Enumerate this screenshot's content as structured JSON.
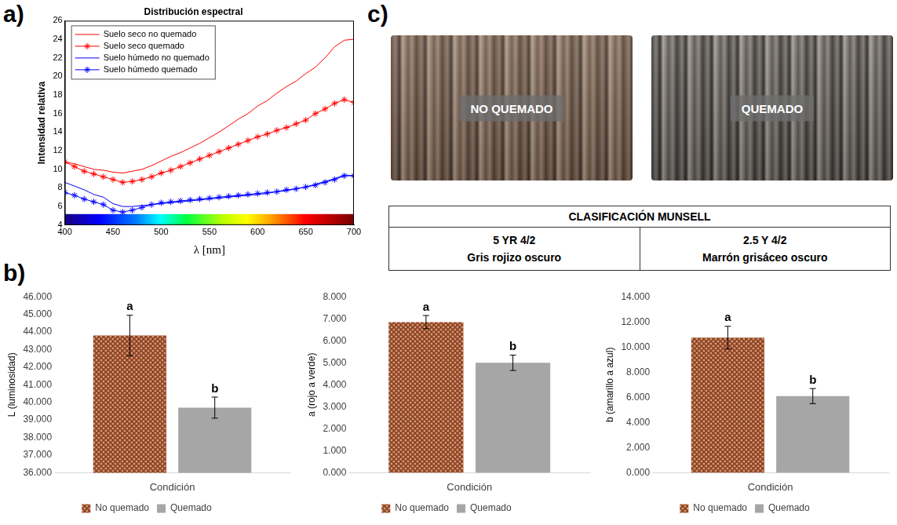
{
  "panel_labels": {
    "a": "a)",
    "b": "b)",
    "c": "c)"
  },
  "chart_data": [
    {
      "type": "line",
      "title": "Distribución espectral",
      "x_label": "λ [nm]",
      "y_label": "Intensidad relativa",
      "x": [
        400,
        410,
        420,
        430,
        440,
        450,
        460,
        470,
        480,
        490,
        500,
        510,
        520,
        530,
        540,
        550,
        560,
        570,
        580,
        590,
        600,
        610,
        620,
        630,
        640,
        650,
        660,
        670,
        680,
        690,
        700
      ],
      "series": [
        {
          "name": "Suelo seco no quemado",
          "color": "#ff0000",
          "marker": "none",
          "line_style": "solid",
          "values": [
            10.8,
            10.6,
            10.3,
            10.0,
            9.9,
            9.7,
            9.6,
            9.8,
            10.0,
            10.4,
            10.9,
            11.4,
            11.8,
            12.3,
            12.8,
            13.4,
            14.0,
            14.7,
            15.4,
            16.0,
            16.8,
            17.4,
            18.2,
            18.9,
            19.5,
            20.3,
            21.0,
            22.0,
            23.2,
            23.9,
            24.0
          ]
        },
        {
          "name": "Suelo seco quemado",
          "color": "#ff0000",
          "marker": "star",
          "line_style": "solid",
          "values": [
            10.8,
            10.3,
            9.8,
            9.5,
            9.2,
            8.9,
            8.6,
            8.7,
            8.9,
            9.2,
            9.6,
            9.9,
            10.3,
            10.7,
            11.1,
            11.5,
            11.9,
            12.3,
            12.7,
            13.1,
            13.5,
            13.8,
            14.2,
            14.5,
            14.9,
            15.3,
            16.0,
            16.5,
            17.1,
            17.5,
            17.2
          ]
        },
        {
          "name": "Suelo húmedo no quemado",
          "color": "#0000ff",
          "marker": "none",
          "line_style": "solid",
          "values": [
            8.6,
            8.2,
            7.8,
            7.3,
            7.0,
            6.3,
            6.0,
            6.0,
            6.1,
            6.2,
            6.3,
            6.4,
            6.5,
            6.6,
            6.7,
            6.8,
            6.9,
            7.0,
            7.1,
            7.2,
            7.3,
            7.4,
            7.6,
            7.7,
            7.9,
            8.1,
            8.4,
            8.7,
            9.0,
            9.4,
            9.3
          ]
        },
        {
          "name": "Suelo húmedo quemado",
          "color": "#0000ff",
          "marker": "star",
          "line_style": "solid",
          "values": [
            7.5,
            7.2,
            6.8,
            6.5,
            6.2,
            5.6,
            5.4,
            5.6,
            5.9,
            6.2,
            6.4,
            6.5,
            6.6,
            6.7,
            6.8,
            6.9,
            7.0,
            7.1,
            7.2,
            7.3,
            7.4,
            7.5,
            7.6,
            7.8,
            7.9,
            8.1,
            8.3,
            8.6,
            8.9,
            9.3,
            9.3
          ]
        }
      ],
      "xlim": [
        400,
        700
      ],
      "xticks": [
        400,
        450,
        500,
        550,
        600,
        650,
        700
      ],
      "ylim": [
        4,
        26
      ],
      "yticks": [
        4,
        6,
        8,
        10,
        12,
        14,
        16,
        18,
        20,
        22,
        24,
        26
      ],
      "grid": false,
      "legend": "upper left"
    },
    {
      "type": "bar",
      "y_label": "L (luminosidad)",
      "categories": [
        "Condición"
      ],
      "series": [
        {
          "name": "No quemado",
          "color": "#a0522d",
          "values": [
            43.8
          ],
          "errors": [
            1.15
          ],
          "letters": [
            "a"
          ]
        },
        {
          "name": "Quemado",
          "color": "#a6a6a6",
          "values": [
            39.7
          ],
          "errors": [
            0.6
          ],
          "letters": [
            "b"
          ]
        }
      ],
      "ylim": [
        36,
        46
      ],
      "yticks": [
        {
          "value": 36,
          "label": "36.000"
        },
        {
          "value": 37,
          "label": "37.000"
        },
        {
          "value": 38,
          "label": "38.000"
        },
        {
          "value": 39,
          "label": "39.000"
        },
        {
          "value": 40,
          "label": "40.000"
        },
        {
          "value": 41,
          "label": "41.000"
        },
        {
          "value": 42,
          "label": "42.000"
        },
        {
          "value": 43,
          "label": "43.000"
        },
        {
          "value": 44,
          "label": "44.000"
        },
        {
          "value": 45,
          "label": "45.000"
        },
        {
          "value": 46,
          "label": "46.000"
        }
      ],
      "grid": false,
      "legend": "bottom"
    },
    {
      "type": "bar",
      "y_label": "a (rojo a verde)",
      "categories": [
        "Condición"
      ],
      "series": [
        {
          "name": "No quemado",
          "color": "#a0522d",
          "values": [
            6.85
          ],
          "errors": [
            0.3
          ],
          "letters": [
            "a"
          ]
        },
        {
          "name": "Quemado",
          "color": "#a6a6a6",
          "values": [
            5.0
          ],
          "errors": [
            0.35
          ],
          "letters": [
            "b"
          ]
        }
      ],
      "ylim": [
        0,
        8
      ],
      "yticks": [
        {
          "value": 0,
          "label": "0.000"
        },
        {
          "value": 1,
          "label": "1.000"
        },
        {
          "value": 2,
          "label": "2.000"
        },
        {
          "value": 3,
          "label": "3.000"
        },
        {
          "value": 4,
          "label": "4.000"
        },
        {
          "value": 5,
          "label": "5.000"
        },
        {
          "value": 6,
          "label": "6.000"
        },
        {
          "value": 7,
          "label": "7.000"
        },
        {
          "value": 8,
          "label": "8.000"
        }
      ],
      "grid": false,
      "legend": "bottom"
    },
    {
      "type": "bar",
      "y_label": "b (amarillo a azul)",
      "categories": [
        "Condición"
      ],
      "series": [
        {
          "name": "No quemado",
          "color": "#a0522d",
          "values": [
            10.75
          ],
          "errors": [
            0.9
          ],
          "letters": [
            "a"
          ]
        },
        {
          "name": "Quemado",
          "color": "#a6a6a6",
          "values": [
            6.1
          ],
          "errors": [
            0.6
          ],
          "letters": [
            "b"
          ]
        }
      ],
      "ylim": [
        0,
        14
      ],
      "yticks": [
        {
          "value": 0,
          "label": "0.000"
        },
        {
          "value": 2,
          "label": "2.000"
        },
        {
          "value": 4,
          "label": "4.000"
        },
        {
          "value": 6,
          "label": "6.000"
        },
        {
          "value": 8,
          "label": "8.000"
        },
        {
          "value": 10,
          "label": "10.000"
        },
        {
          "value": 12,
          "label": "12.000"
        },
        {
          "value": 14,
          "label": "14.000"
        }
      ],
      "grid": false,
      "legend": "bottom"
    }
  ],
  "panel_c": {
    "images": [
      {
        "label": "NO QUEMADO"
      },
      {
        "label": "QUEMADO"
      }
    ],
    "table": {
      "header": "CLASIFICACIÓN MUNSELL",
      "rows": [
        [
          "5 YR 4/2",
          "2.5 Y 4/2"
        ],
        [
          "Gris rojizo oscuro",
          "Marrón grisáceo oscuro"
        ]
      ]
    }
  }
}
